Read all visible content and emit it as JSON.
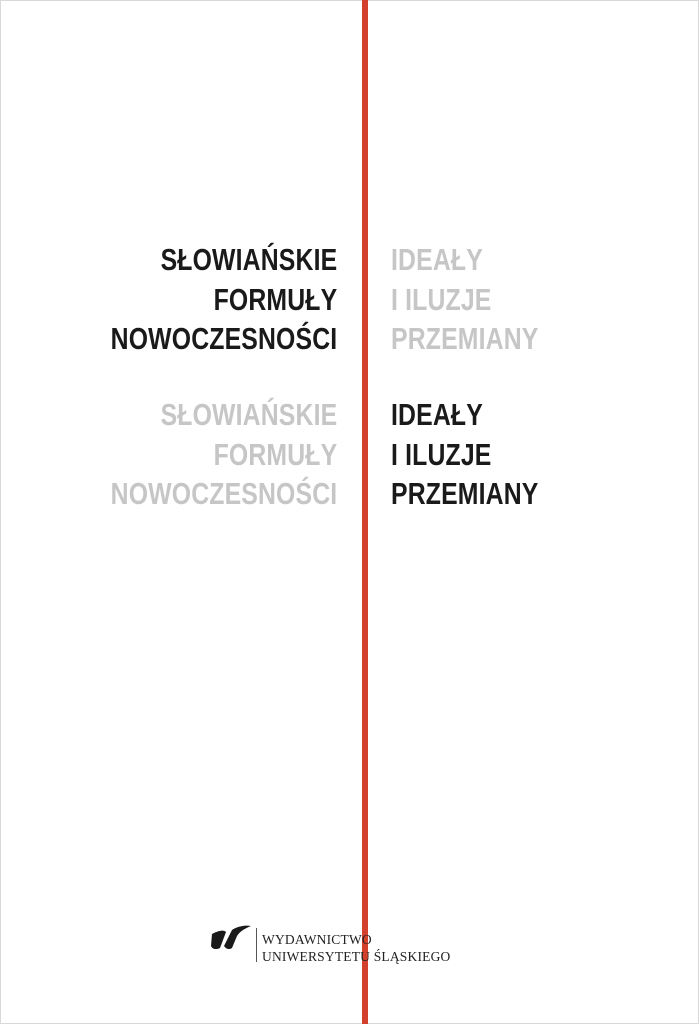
{
  "cover": {
    "title_primary": [
      "SŁOWIAŃSKIE",
      "FORMUŁY",
      "NOWOCZESNOŚCI"
    ],
    "title_secondary": [
      "IDEAŁY",
      "I ILUZJE",
      "PRZEMIANY"
    ]
  },
  "publisher": {
    "line1": "WYDAWNICTWO",
    "line2": "UNIWERSYTETU ŚLĄSKIEGO",
    "logo": "us-logo"
  },
  "colors": {
    "accent_line": "#d3402c",
    "dark_text": "#1a1a1a",
    "grey_text": "#c6c6c6"
  }
}
